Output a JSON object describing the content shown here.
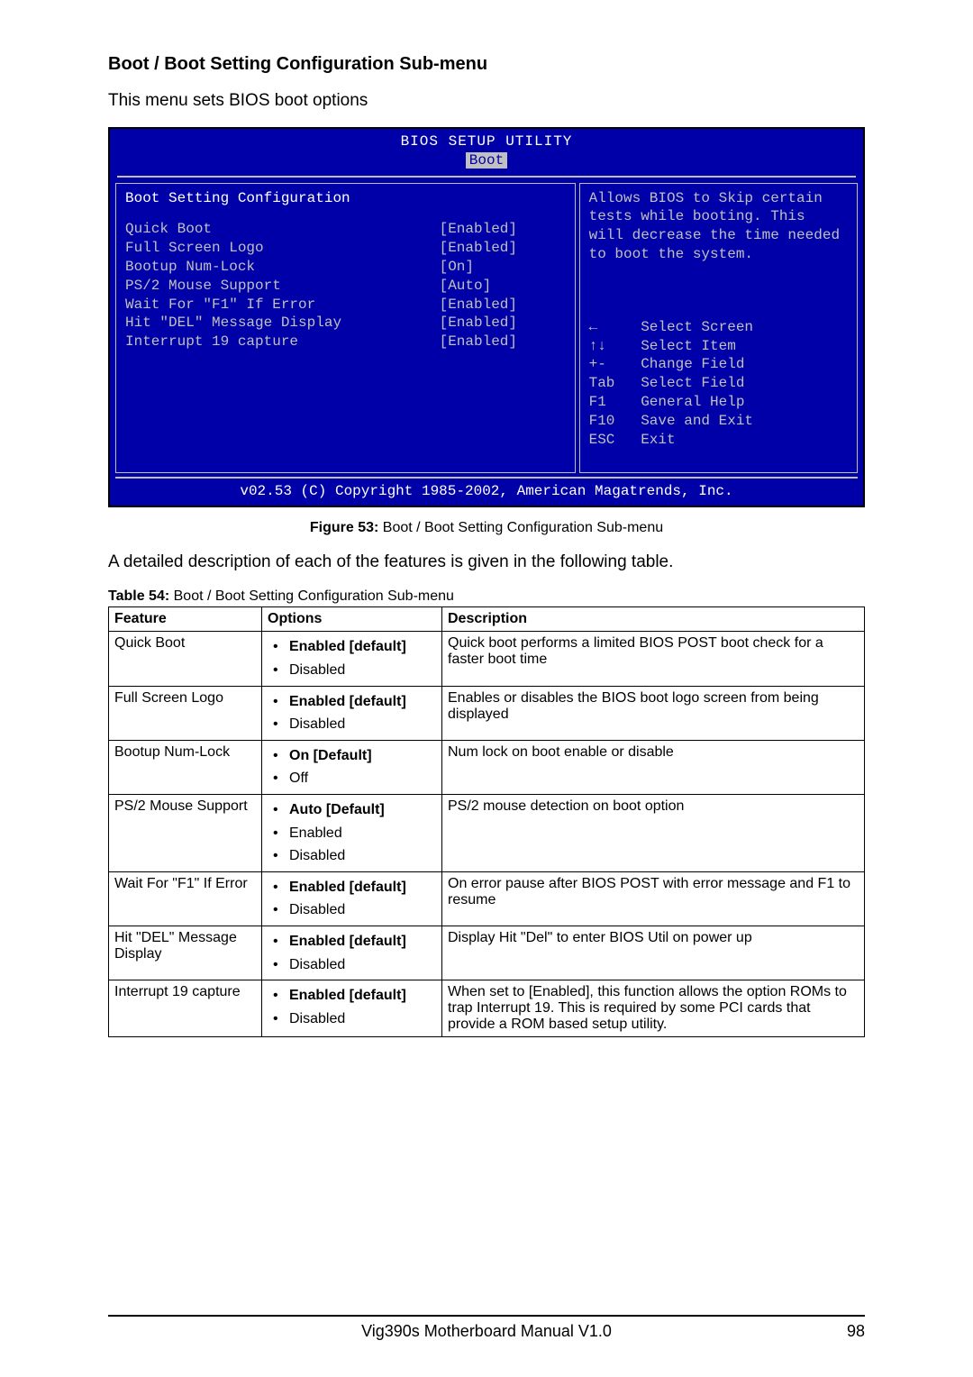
{
  "heading": "Boot / Boot Setting Configuration Sub-menu",
  "intro": "This menu sets BIOS boot options",
  "bios": {
    "title": "BIOS SETUP UTILITY",
    "tab": "Boot",
    "section_title": "Boot Setting Configuration",
    "settings": [
      {
        "label": "Quick Boot",
        "value": "[Enabled]"
      },
      {
        "label": "Full Screen Logo",
        "value": "[Enabled]"
      },
      {
        "label": "Bootup Num-Lock",
        "value": "[On]"
      },
      {
        "label": "PS/2 Mouse Support",
        "value": "[Auto]"
      },
      {
        "label": "Wait For \"F1\" If Error",
        "value": "[Enabled]"
      },
      {
        "label": "Hit \"DEL\" Message Display",
        "value": "[Enabled]"
      },
      {
        "label": "Interrupt 19 capture",
        "value": "[Enabled]"
      }
    ],
    "help_text": "Allows BIOS to Skip certain tests while booting. This will decrease the time needed to boot the system.",
    "nav": [
      "←     Select Screen",
      "↑↓    Select Item",
      "+-    Change Field",
      "Tab   Select Field",
      "F1    General Help",
      "F10   Save and Exit",
      "ESC   Exit"
    ],
    "footer": "v02.53 (C) Copyright 1985-2002, American Magatrends, Inc.",
    "colors": {
      "bg": "#0000a8",
      "border": "#c0c0c0",
      "text_gray": "#c0c0c0",
      "text_white": "#ffffff"
    }
  },
  "figure_caption_bold": "Figure 53:",
  "figure_caption_rest": " Boot / Boot Setting Configuration Sub-menu",
  "after_figure": "A detailed description of each of the features is given in the following table.",
  "table_caption_bold": "Table 54:",
  "table_caption_rest": " Boot / Boot Setting Configuration Sub-menu",
  "table": {
    "headers": [
      "Feature",
      "Options",
      "Description"
    ],
    "rows": [
      {
        "feature": "Quick Boot",
        "options": [
          {
            "text": "Enabled [default]",
            "bold": true
          },
          {
            "text": "Disabled",
            "bold": false
          }
        ],
        "description": "Quick boot performs a limited BIOS POST boot check for a faster boot time"
      },
      {
        "feature": "Full Screen Logo",
        "options": [
          {
            "text": "Enabled [default]",
            "bold": true
          },
          {
            "text": "Disabled",
            "bold": false
          }
        ],
        "description": "Enables or disables the BIOS boot logo screen from being displayed"
      },
      {
        "feature": "Bootup Num-Lock",
        "options": [
          {
            "text": "On [Default]",
            "bold": true
          },
          {
            "text": "Off",
            "bold": false
          }
        ],
        "description": "Num lock on boot enable or disable"
      },
      {
        "feature": "PS/2 Mouse Support",
        "options": [
          {
            "text": "Auto [Default]",
            "bold": true
          },
          {
            "text": "Enabled",
            "bold": false
          },
          {
            "text": "Disabled",
            "bold": false
          }
        ],
        "description": "PS/2 mouse detection on boot option"
      },
      {
        "feature": "Wait For \"F1\" If Error",
        "options": [
          {
            "text": "Enabled [default]",
            "bold": true
          },
          {
            "text": "Disabled",
            "bold": false
          }
        ],
        "description": "On error pause after BIOS POST with error message and F1 to resume"
      },
      {
        "feature": "Hit \"DEL\" Message Display",
        "options": [
          {
            "text": "Enabled [default]",
            "bold": true
          },
          {
            "text": "Disabled",
            "bold": false
          }
        ],
        "description": "Display Hit \"Del\" to enter BIOS Util on power up"
      },
      {
        "feature": "Interrupt 19 capture",
        "options": [
          {
            "text": "Enabled [default]",
            "bold": true
          },
          {
            "text": "Disabled",
            "bold": false
          }
        ],
        "description": "When set to [Enabled], this function allows the option ROMs to trap Interrupt 19. This is required by some PCI cards that provide a ROM based setup utility."
      }
    ]
  },
  "footer_center": "Vig390s Motherboard Manual V1.0",
  "footer_page": "98"
}
